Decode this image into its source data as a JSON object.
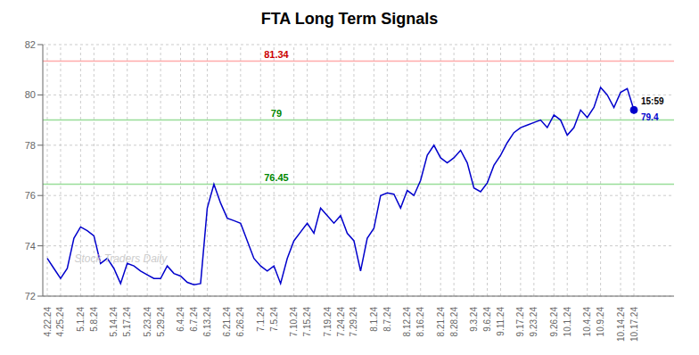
{
  "chart_data": {
    "type": "line",
    "title": "FTA Long Term Signals",
    "categories": [
      "4.22.24",
      null,
      "4.25.24",
      null,
      null,
      "5.1.24",
      null,
      "5.8.24",
      null,
      null,
      "5.14.24",
      null,
      "5.17.24",
      null,
      null,
      "5.23.24",
      null,
      "5.29.24",
      null,
      null,
      "6.4.24",
      null,
      "6.7.24",
      null,
      "6.13.24",
      null,
      null,
      "6.21.24",
      null,
      "6.26.24",
      null,
      null,
      "7.1.24",
      null,
      "7.5.24",
      null,
      null,
      "7.10.24",
      null,
      "7.15.24",
      null,
      null,
      "7.19.24",
      null,
      "7.24.24",
      null,
      "7.29.24",
      null,
      null,
      "8.1.24",
      null,
      "8.7.24",
      null,
      null,
      "8.12.24",
      null,
      "8.16.24",
      null,
      null,
      "8.21.24",
      null,
      "8.28.24",
      null,
      null,
      "9.3.24",
      null,
      "9.6.24",
      null,
      "9.11.24",
      null,
      null,
      "9.17.24",
      null,
      "9.23.24",
      null,
      null,
      "9.26.24",
      null,
      "10.1.24",
      null,
      null,
      "10.4.24",
      null,
      "10.9.24",
      null,
      null,
      "10.14.24",
      null,
      "10.17.24"
    ],
    "values": [
      73.5,
      73.1,
      72.7,
      73.1,
      74.3,
      74.75,
      74.6,
      74.4,
      73.3,
      73.5,
      73.1,
      72.5,
      73.3,
      73.2,
      73.0,
      72.85,
      72.7,
      72.7,
      73.2,
      72.9,
      72.8,
      72.55,
      72.45,
      72.5,
      75.5,
      76.45,
      75.7,
      75.1,
      75.0,
      74.9,
      74.2,
      73.5,
      73.2,
      73.0,
      73.2,
      72.5,
      73.5,
      74.2,
      74.55,
      74.9,
      74.5,
      75.5,
      75.2,
      74.9,
      75.2,
      74.5,
      74.2,
      73.0,
      74.3,
      74.7,
      76.0,
      76.1,
      76.05,
      75.5,
      76.2,
      76.0,
      76.6,
      77.6,
      78.0,
      77.5,
      77.3,
      77.5,
      77.8,
      77.3,
      76.3,
      76.15,
      76.5,
      77.2,
      77.6,
      78.1,
      78.5,
      78.7,
      78.8,
      78.9,
      79.0,
      78.7,
      79.2,
      79.0,
      78.4,
      78.7,
      79.4,
      79.1,
      79.5,
      80.3,
      80.0,
      79.5,
      80.1,
      80.25,
      79.4
    ],
    "color": "#0000cc",
    "ylim": [
      72,
      82
    ],
    "yticks": [
      72,
      74,
      76,
      78,
      80,
      82
    ],
    "grid": true,
    "reference_lines": [
      {
        "value": 81.34,
        "label": "81.34",
        "color": "#ffaaaa",
        "label_color": "#cc0000"
      },
      {
        "value": 79.0,
        "label": "79",
        "color": "#99dd99",
        "label_color": "#008800"
      },
      {
        "value": 76.45,
        "label": "76.45",
        "color": "#99dd99",
        "label_color": "#008800"
      }
    ],
    "last_point": {
      "label": "15:59",
      "value_label": "79.4",
      "color": "#0000cc"
    },
    "watermark": {
      "text": "Stock Traders Daily",
      "color": "#cccccc"
    }
  }
}
